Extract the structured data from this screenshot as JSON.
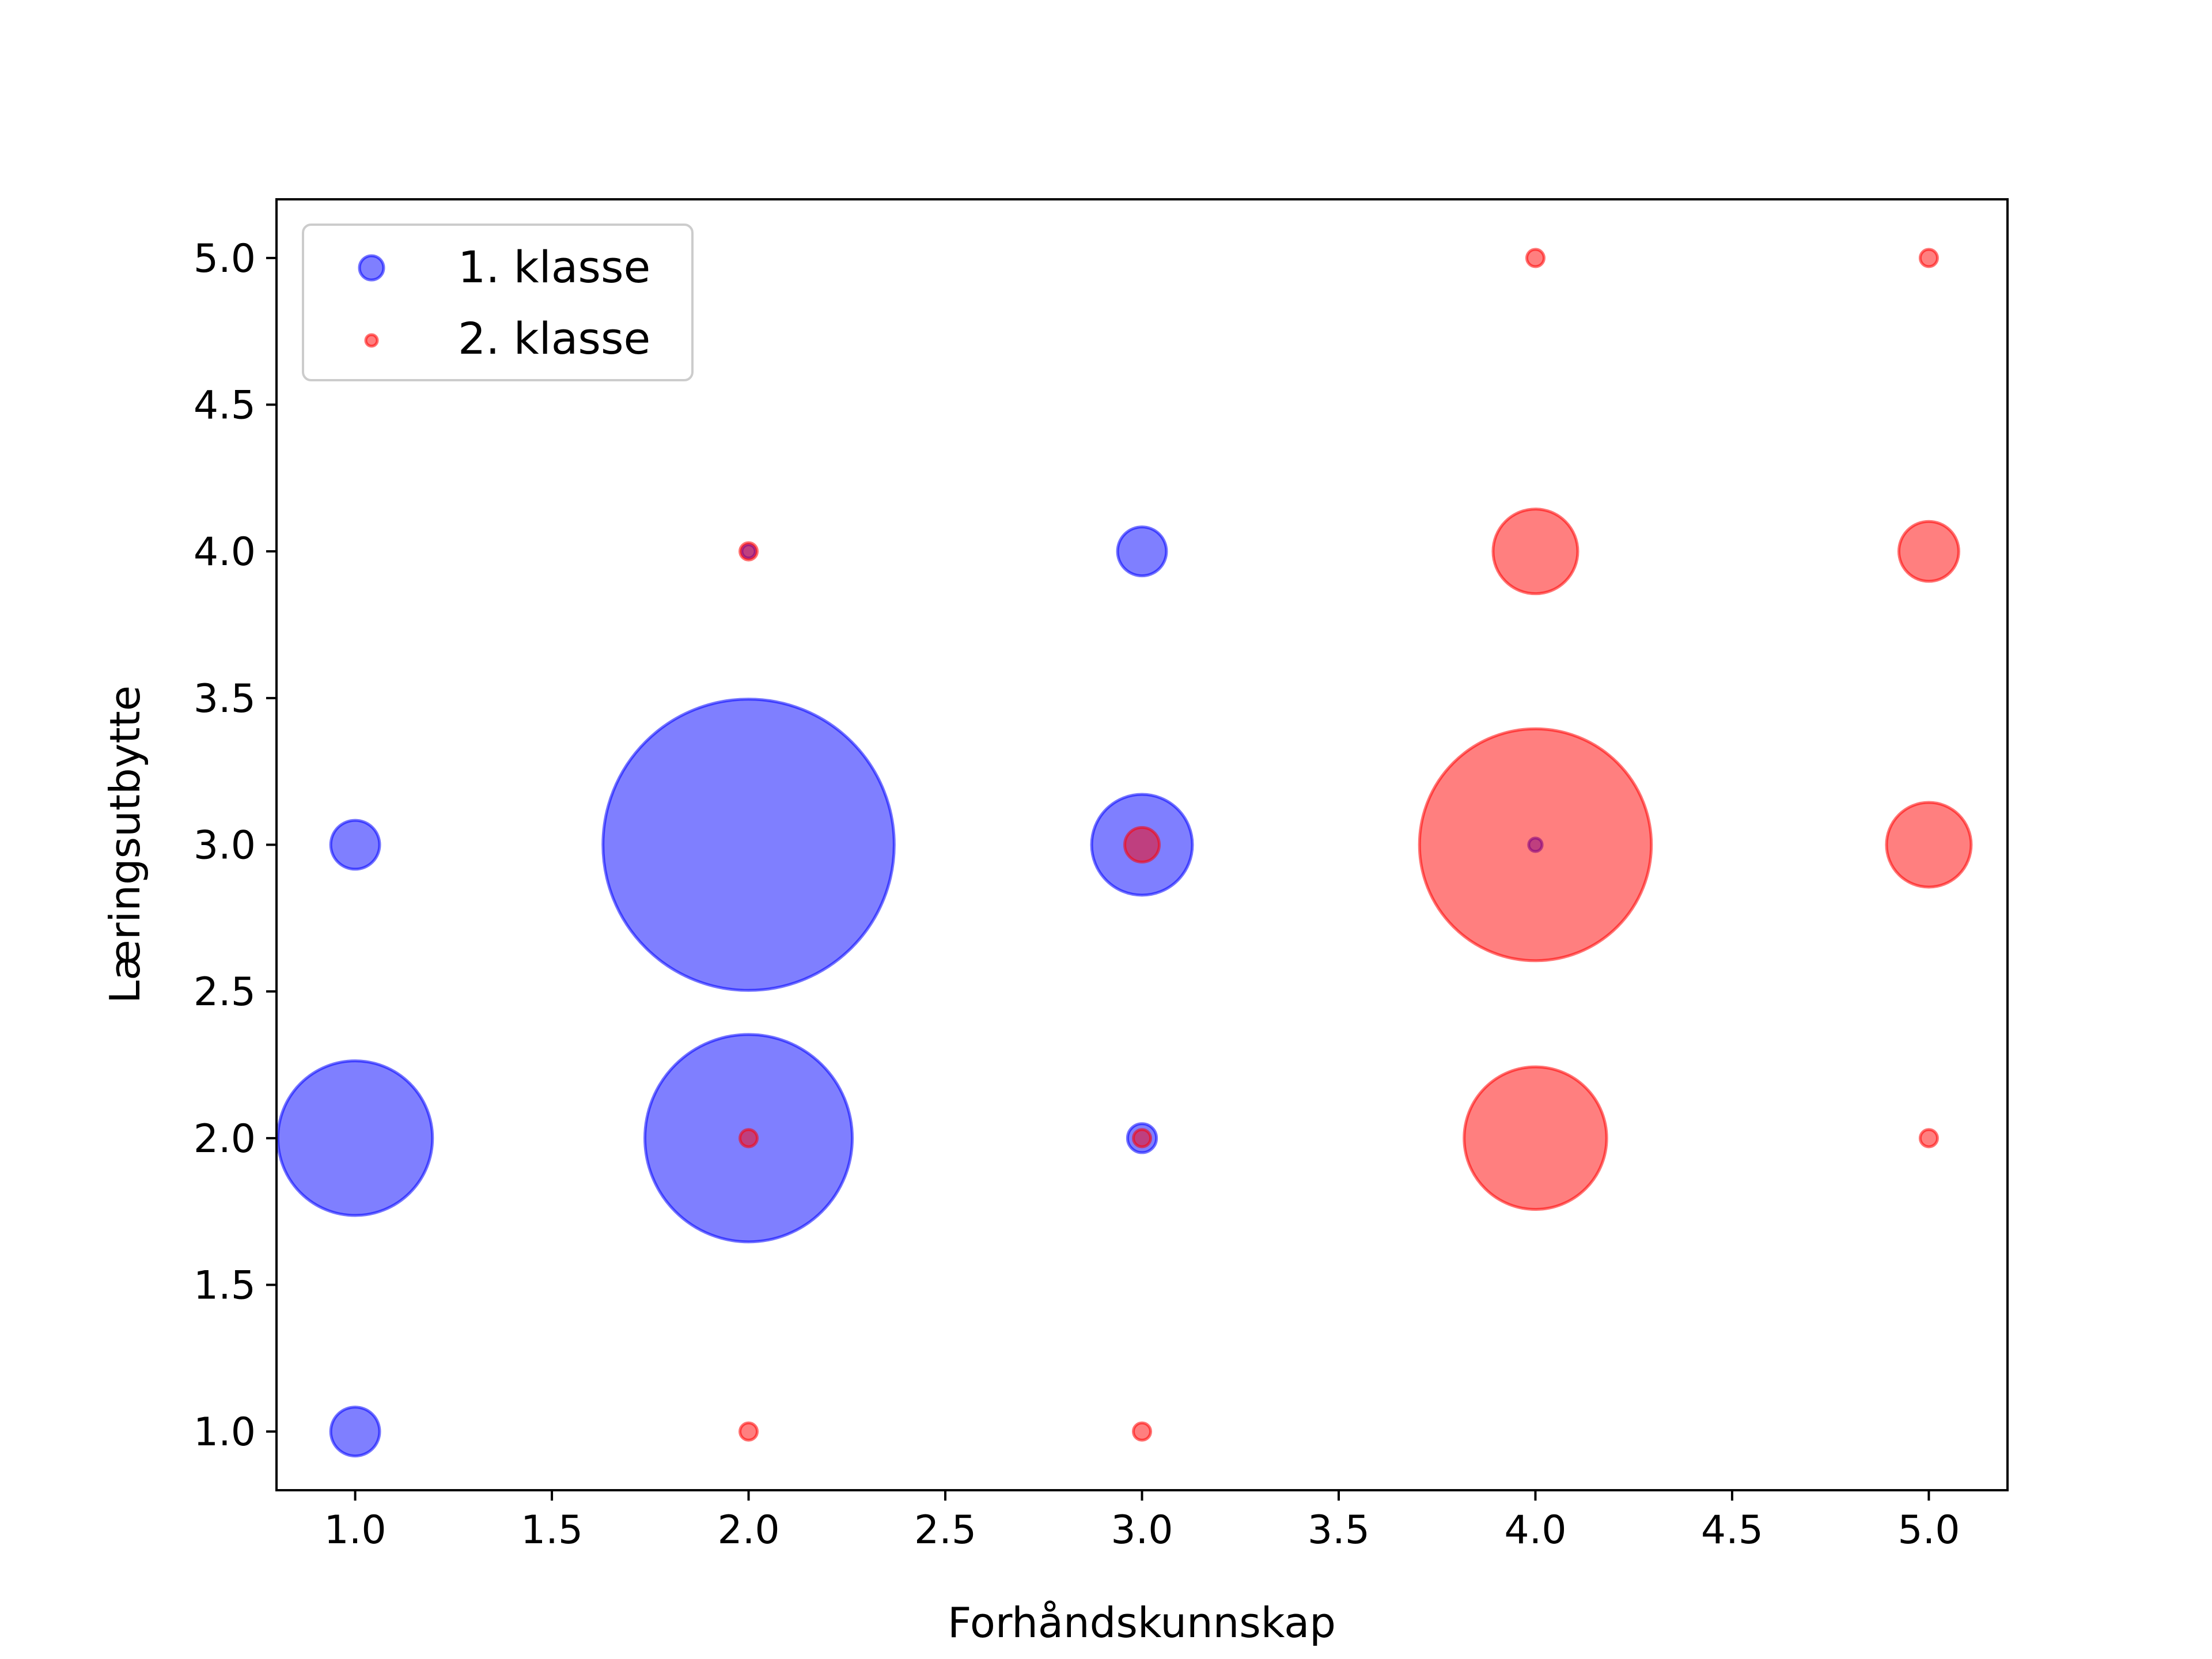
{
  "chart_data": {
    "type": "scatter",
    "title": "",
    "xlabel": "Forhåndskunnskap",
    "ylabel": "Læringsutbytte",
    "xlim": [
      0.8,
      5.2
    ],
    "ylim": [
      0.8,
      5.2
    ],
    "xticks": [
      "1.0",
      "1.5",
      "2.0",
      "2.5",
      "3.0",
      "3.5",
      "4.0",
      "4.5",
      "5.0"
    ],
    "yticks": [
      "1.0",
      "1.5",
      "2.0",
      "2.5",
      "3.0",
      "3.5",
      "4.0",
      "4.5",
      "5.0"
    ],
    "grid": false,
    "legend": {
      "position": "top-left"
    },
    "series": [
      {
        "name": "1. klasse",
        "color": "#0000ff",
        "alpha": 0.5,
        "points": [
          {
            "x": 1,
            "y": 1,
            "count": 2
          },
          {
            "x": 1,
            "y": 2,
            "count": 20
          },
          {
            "x": 1,
            "y": 3,
            "count": 2
          },
          {
            "x": 2,
            "y": 2,
            "count": 36
          },
          {
            "x": 2,
            "y": 3,
            "count": 71
          },
          {
            "x": 2,
            "y": 4,
            "count": 0.15
          },
          {
            "x": 3,
            "y": 2,
            "count": 0.7
          },
          {
            "x": 3,
            "y": 3,
            "count": 8.5
          },
          {
            "x": 3,
            "y": 4,
            "count": 2
          },
          {
            "x": 4,
            "y": 3,
            "count": 0.15
          }
        ]
      },
      {
        "name": "2. klasse",
        "color": "#ff0000",
        "alpha": 0.5,
        "points": [
          {
            "x": 2,
            "y": 1,
            "count": 0.25
          },
          {
            "x": 2,
            "y": 2,
            "count": 0.25
          },
          {
            "x": 2,
            "y": 4,
            "count": 0.25
          },
          {
            "x": 3,
            "y": 1,
            "count": 0.25
          },
          {
            "x": 3,
            "y": 2,
            "count": 0.25
          },
          {
            "x": 3,
            "y": 3,
            "count": 1
          },
          {
            "x": 4,
            "y": 2,
            "count": 17
          },
          {
            "x": 4,
            "y": 3,
            "count": 45
          },
          {
            "x": 4,
            "y": 4,
            "count": 6
          },
          {
            "x": 4,
            "y": 5,
            "count": 0.25
          },
          {
            "x": 5,
            "y": 2,
            "count": 0.25
          },
          {
            "x": 5,
            "y": 3,
            "count": 6
          },
          {
            "x": 5,
            "y": 4,
            "count": 3
          },
          {
            "x": 5,
            "y": 5,
            "count": 0.25
          }
        ]
      }
    ]
  }
}
